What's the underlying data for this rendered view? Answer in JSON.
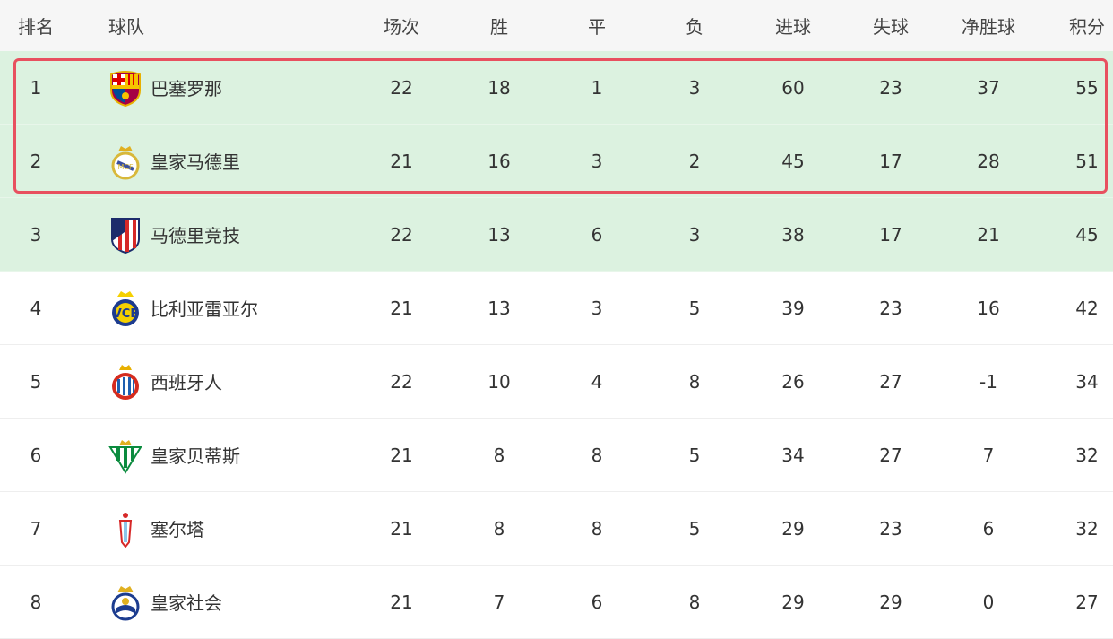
{
  "headers": {
    "rank": "排名",
    "team": "球队",
    "played": "场次",
    "won": "胜",
    "drawn": "平",
    "lost": "负",
    "gf": "进球",
    "ga": "失球",
    "gd": "净胜球",
    "pts": "积分"
  },
  "colors": {
    "highlight_row": "#dcf2e0",
    "highlight_box": "#e8505f",
    "header_bg": "#f6f6f6"
  },
  "rows": [
    {
      "rank": "1",
      "team": "巴塞罗那",
      "crest": "barcelona-crest",
      "played": "22",
      "won": "18",
      "drawn": "1",
      "lost": "3",
      "gf": "60",
      "ga": "23",
      "gd": "37",
      "pts": "55"
    },
    {
      "rank": "2",
      "team": "皇家马德里",
      "crest": "real-madrid-crest",
      "played": "21",
      "won": "16",
      "drawn": "3",
      "lost": "2",
      "gf": "45",
      "ga": "17",
      "gd": "28",
      "pts": "51"
    },
    {
      "rank": "3",
      "team": "马德里竞技",
      "crest": "atletico-crest",
      "played": "22",
      "won": "13",
      "drawn": "6",
      "lost": "3",
      "gf": "38",
      "ga": "17",
      "gd": "21",
      "pts": "45"
    },
    {
      "rank": "4",
      "team": "比利亚雷亚尔",
      "crest": "villarreal-crest",
      "played": "21",
      "won": "13",
      "drawn": "3",
      "lost": "5",
      "gf": "39",
      "ga": "23",
      "gd": "16",
      "pts": "42"
    },
    {
      "rank": "5",
      "team": "西班牙人",
      "crest": "espanyol-crest",
      "played": "22",
      "won": "10",
      "drawn": "4",
      "lost": "8",
      "gf": "26",
      "ga": "27",
      "gd": "-1",
      "pts": "34"
    },
    {
      "rank": "6",
      "team": "皇家贝蒂斯",
      "crest": "betis-crest",
      "played": "21",
      "won": "8",
      "drawn": "8",
      "lost": "5",
      "gf": "34",
      "ga": "27",
      "gd": "7",
      "pts": "32"
    },
    {
      "rank": "7",
      "team": "塞尔塔",
      "crest": "celta-crest",
      "played": "21",
      "won": "8",
      "drawn": "8",
      "lost": "5",
      "gf": "29",
      "ga": "23",
      "gd": "6",
      "pts": "32"
    },
    {
      "rank": "8",
      "team": "皇家社会",
      "crest": "real-sociedad-crest",
      "played": "21",
      "won": "7",
      "drawn": "6",
      "lost": "8",
      "gf": "29",
      "ga": "29",
      "gd": "0",
      "pts": "27"
    }
  ]
}
